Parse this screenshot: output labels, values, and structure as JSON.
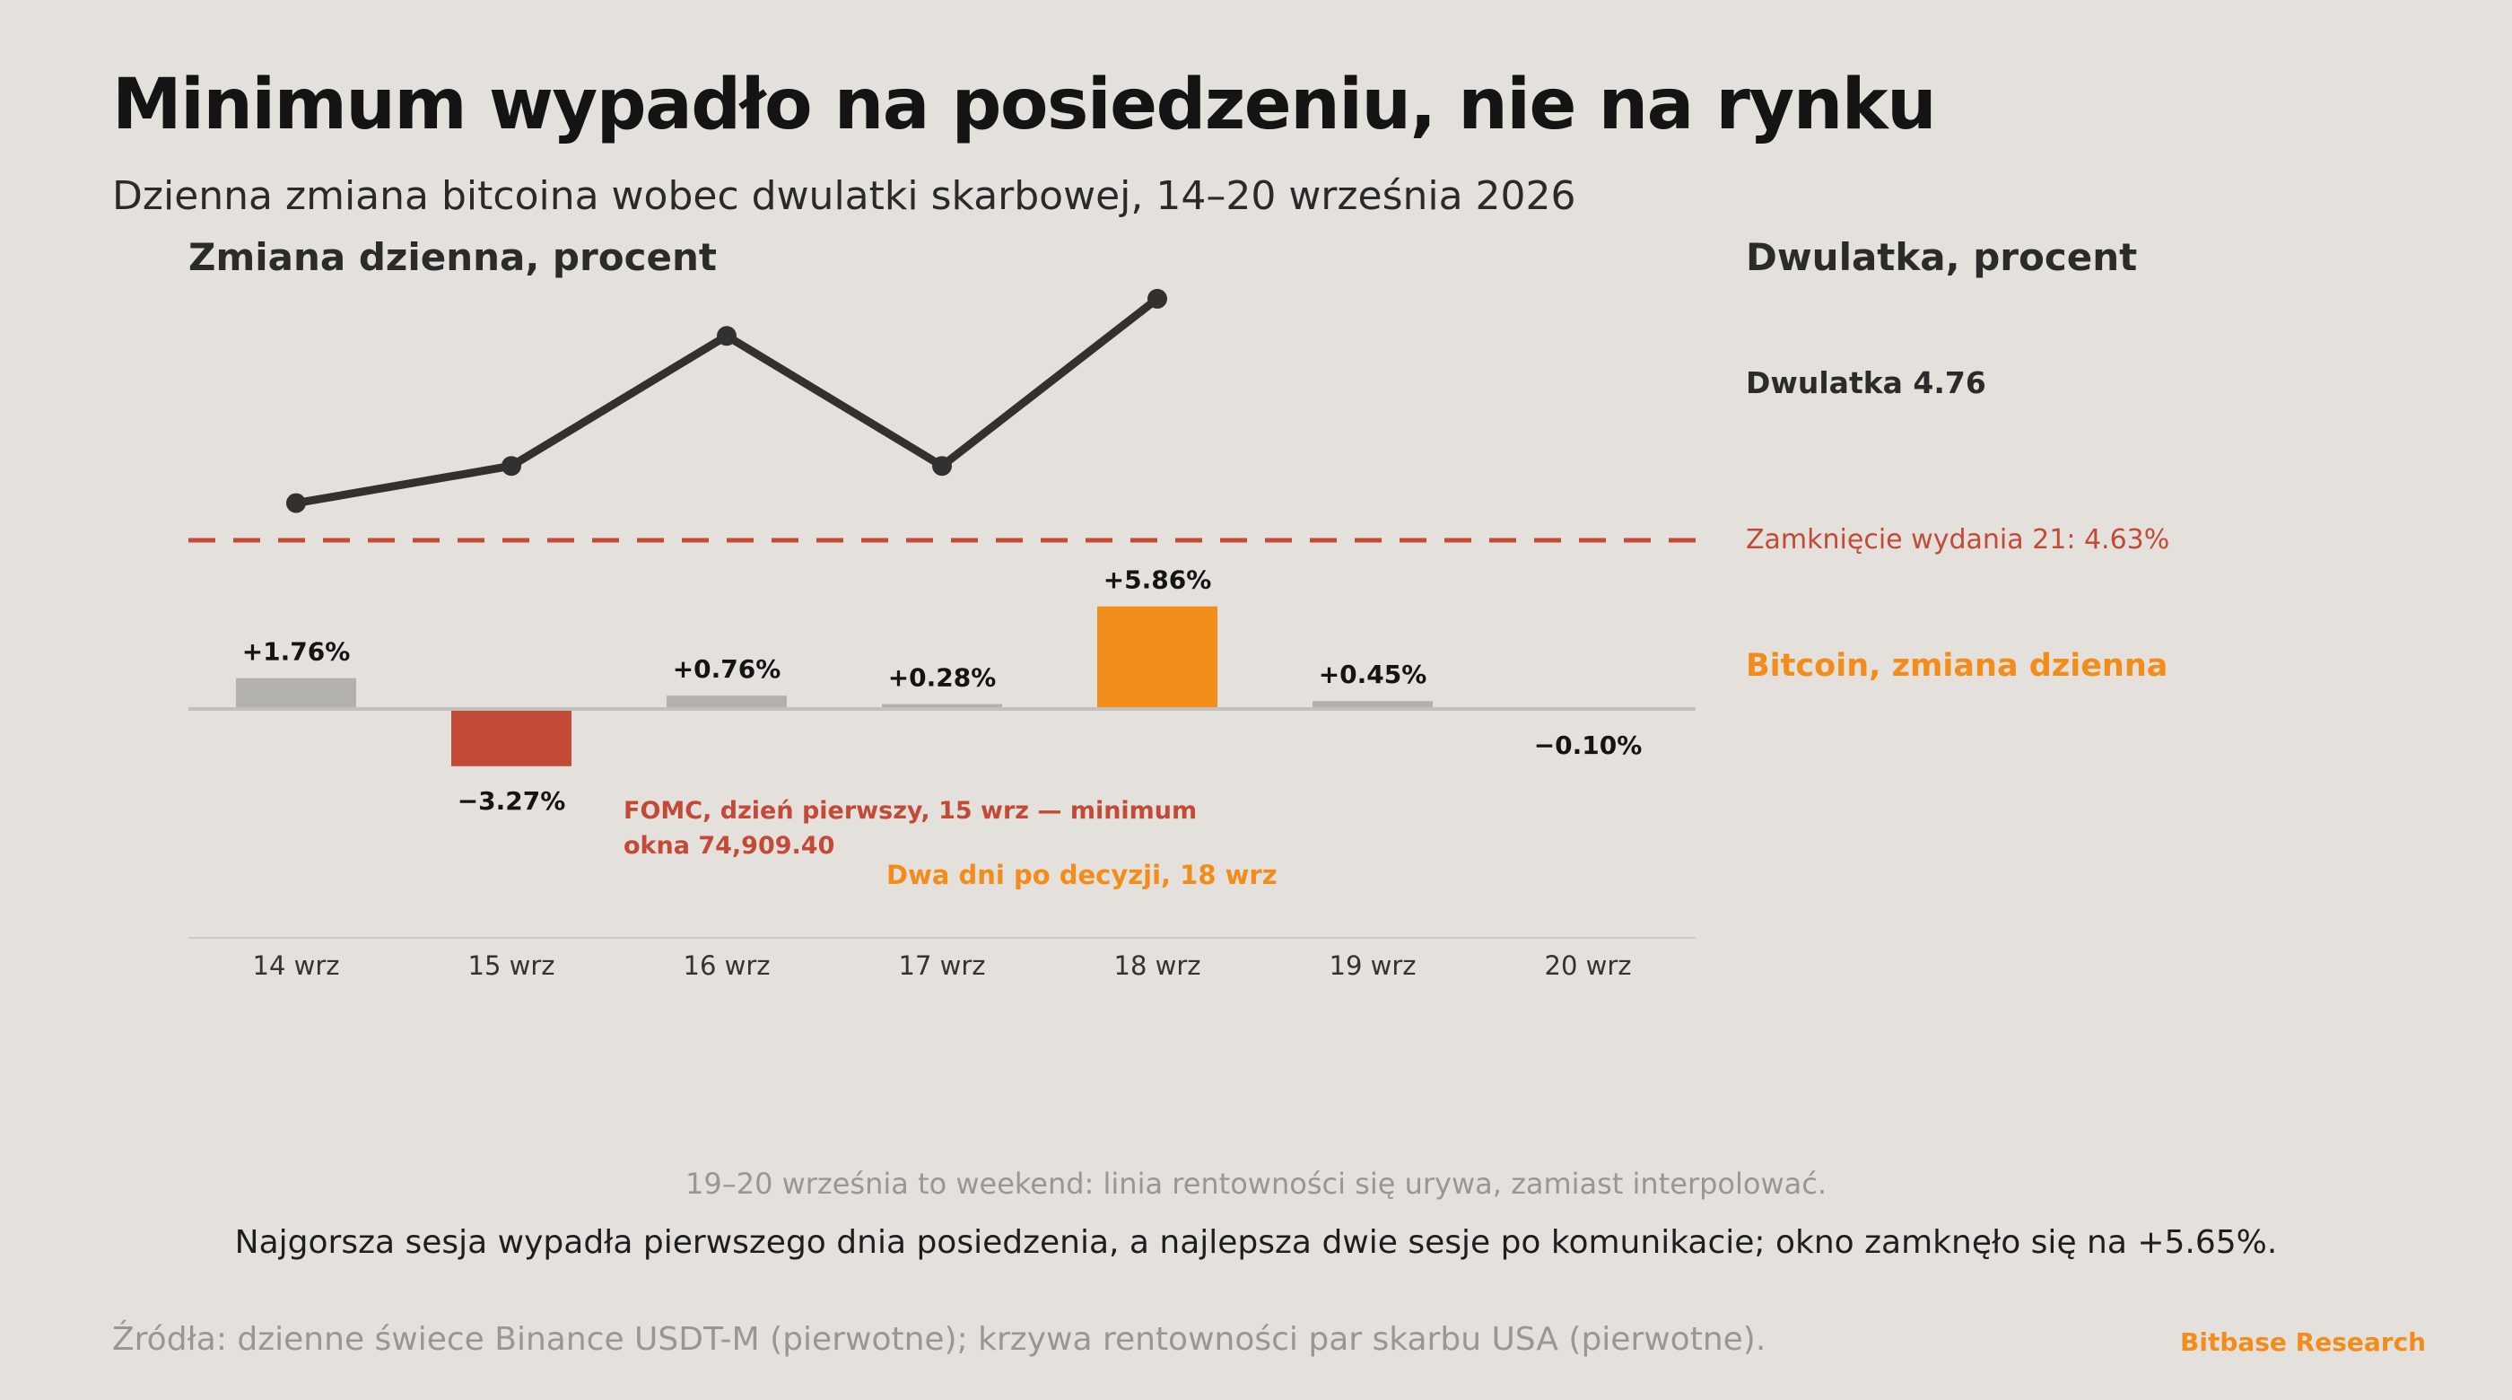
{
  "title": "Minimum wypadło na posiedzeniu, nie na rynku",
  "subtitle": "Dzienna zmiana bitcoina wobec dwulatki skarbowej, 14–20 września 2026",
  "colors": {
    "background": "#e4e0db",
    "bar_neutral": "#b3b1ae",
    "bar_negative": "#c24a36",
    "bar_highlight": "#f28c1a",
    "yield_line": "#333130",
    "reference_line": "#c24a36"
  },
  "chart_data": {
    "type": "bar",
    "categories": [
      "14 wrz",
      "15 wrz",
      "16 wrz",
      "17 wrz",
      "18 wrz",
      "19 wrz",
      "20 wrz"
    ],
    "left_axis_title": "Zmiana dzienna, procent",
    "right_axis_title": "Dwulatka, procent",
    "series": [
      {
        "name": "Bitcoin, zmiana dzienna",
        "type": "bar",
        "values": [
          1.76,
          -3.27,
          0.76,
          0.28,
          5.86,
          0.45,
          -0.1
        ],
        "labels": [
          "+1.76%",
          "−3.27%",
          "+0.76%",
          "+0.28%",
          "+5.86%",
          "+0.45%",
          "−0.10%"
        ],
        "highlight": {
          "15 wrz": "negative",
          "18 wrz": "highlight"
        }
      },
      {
        "name": "Dwulatka",
        "type": "line",
        "values": [
          4.65,
          4.67,
          4.74,
          4.67,
          4.76,
          null,
          null
        ],
        "end_label": "Dwulatka 4.76"
      }
    ],
    "reference_line": {
      "value": 4.63,
      "label": "Zamknięcie wydania 21: 4.63%"
    },
    "annotations": [
      {
        "lines": [
          "FOMC, dzień pierwszy, 15 wrz — minimum",
          "okna 74,909.40"
        ],
        "color": "negative"
      },
      {
        "lines": [
          "Dwa dni po decyzji, 18 wrz"
        ],
        "color": "highlight"
      }
    ],
    "grid": false,
    "legend": "direct labels on the right"
  },
  "note": "19–20 września to weekend: linia rentowności się urywa, zamiast interpolować.",
  "takeaway": "Najgorsza sesja wypadła pierwszego dnia posiedzenia, a najlepsza dwie sesje po komunikacie; okno zamknęło się na +5.65%.",
  "source": "Źródła: dzienne świece Binance USDT-M (pierwotne); krzywa rentowności par skarbu USA (pierwotne).",
  "brand": "Bitbase Research"
}
